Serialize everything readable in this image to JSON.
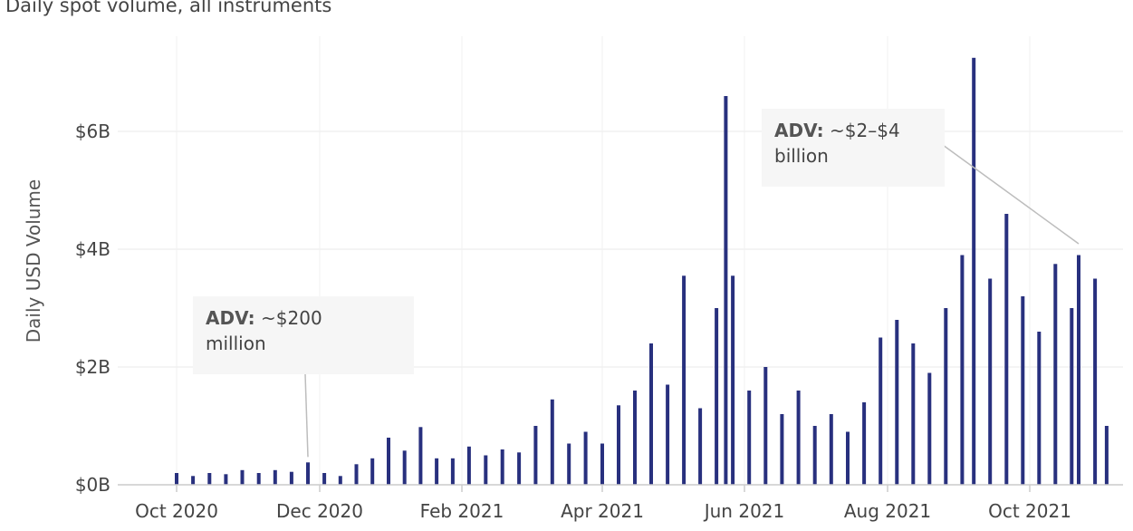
{
  "chart_data": {
    "type": "bar",
    "title": "Daily spot volume, all instruments",
    "xlabel": "",
    "ylabel": "Daily USD Volume",
    "unit": "USD billions",
    "ylim": [
      0,
      7.5
    ],
    "yticks": [
      {
        "value": 0,
        "label": "$0B"
      },
      {
        "value": 2,
        "label": "$2B"
      },
      {
        "value": 4,
        "label": "$4B"
      },
      {
        "value": 6,
        "label": "$6B"
      }
    ],
    "xticks": [
      {
        "date": "2020-10-01",
        "label": "Oct 2020"
      },
      {
        "date": "2020-12-01",
        "label": "Dec 2020"
      },
      {
        "date": "2021-02-01",
        "label": "Feb 2021"
      },
      {
        "date": "2021-04-01",
        "label": "Apr 2021"
      },
      {
        "date": "2021-06-01",
        "label": "Jun 2021"
      },
      {
        "date": "2021-08-01",
        "label": "Aug 2021"
      },
      {
        "date": "2021-10-01",
        "label": "Oct 2021"
      }
    ],
    "x_start": "2020-09-01",
    "x_end": "2021-11-30",
    "grid": "horizontal",
    "bar_color": "#28307e",
    "series": [
      {
        "values": [
          {
            "date": "2020-10-01",
            "value": 0.2
          },
          {
            "date": "2020-10-08",
            "value": 0.15
          },
          {
            "date": "2020-10-15",
            "value": 0.2
          },
          {
            "date": "2020-10-22",
            "value": 0.18
          },
          {
            "date": "2020-10-29",
            "value": 0.25
          },
          {
            "date": "2020-11-05",
            "value": 0.2
          },
          {
            "date": "2020-11-12",
            "value": 0.25
          },
          {
            "date": "2020-11-19",
            "value": 0.22
          },
          {
            "date": "2020-11-26",
            "value": 0.38
          },
          {
            "date": "2020-12-03",
            "value": 0.2
          },
          {
            "date": "2020-12-10",
            "value": 0.15
          },
          {
            "date": "2020-12-17",
            "value": 0.35
          },
          {
            "date": "2020-12-24",
            "value": 0.45
          },
          {
            "date": "2020-12-31",
            "value": 0.8
          },
          {
            "date": "2021-01-07",
            "value": 0.58
          },
          {
            "date": "2021-01-14",
            "value": 0.98
          },
          {
            "date": "2021-01-21",
            "value": 0.45
          },
          {
            "date": "2021-01-28",
            "value": 0.45
          },
          {
            "date": "2021-02-04",
            "value": 0.65
          },
          {
            "date": "2021-02-11",
            "value": 0.5
          },
          {
            "date": "2021-02-18",
            "value": 0.6
          },
          {
            "date": "2021-02-25",
            "value": 0.55
          },
          {
            "date": "2021-03-04",
            "value": 1.0
          },
          {
            "date": "2021-03-11",
            "value": 1.45
          },
          {
            "date": "2021-03-18",
            "value": 0.7
          },
          {
            "date": "2021-03-25",
            "value": 0.9
          },
          {
            "date": "2021-04-01",
            "value": 0.7
          },
          {
            "date": "2021-04-08",
            "value": 1.35
          },
          {
            "date": "2021-04-15",
            "value": 1.6
          },
          {
            "date": "2021-04-22",
            "value": 2.4
          },
          {
            "date": "2021-04-29",
            "value": 1.7
          },
          {
            "date": "2021-05-06",
            "value": 3.55
          },
          {
            "date": "2021-05-13",
            "value": 1.3
          },
          {
            "date": "2021-05-20",
            "value": 3.0
          },
          {
            "date": "2021-05-24",
            "value": 6.6
          },
          {
            "date": "2021-05-27",
            "value": 3.55
          },
          {
            "date": "2021-06-03",
            "value": 1.6
          },
          {
            "date": "2021-06-10",
            "value": 2.0
          },
          {
            "date": "2021-06-17",
            "value": 1.2
          },
          {
            "date": "2021-06-24",
            "value": 1.6
          },
          {
            "date": "2021-07-01",
            "value": 1.0
          },
          {
            "date": "2021-07-08",
            "value": 1.2
          },
          {
            "date": "2021-07-15",
            "value": 0.9
          },
          {
            "date": "2021-07-22",
            "value": 1.4
          },
          {
            "date": "2021-07-29",
            "value": 2.5
          },
          {
            "date": "2021-08-05",
            "value": 2.8
          },
          {
            "date": "2021-08-12",
            "value": 2.4
          },
          {
            "date": "2021-08-19",
            "value": 1.9
          },
          {
            "date": "2021-08-26",
            "value": 3.0
          },
          {
            "date": "2021-09-02",
            "value": 3.9
          },
          {
            "date": "2021-09-07",
            "value": 7.25
          },
          {
            "date": "2021-09-14",
            "value": 3.5
          },
          {
            "date": "2021-09-21",
            "value": 4.6
          },
          {
            "date": "2021-09-28",
            "value": 3.2
          },
          {
            "date": "2021-10-05",
            "value": 2.6
          },
          {
            "date": "2021-10-12",
            "value": 3.75
          },
          {
            "date": "2021-10-19",
            "value": 3.0
          },
          {
            "date": "2021-10-22",
            "value": 3.9
          },
          {
            "date": "2021-10-29",
            "value": 3.5
          },
          {
            "date": "2021-11-03",
            "value": 1.0
          }
        ]
      }
    ],
    "annotations": [
      {
        "bold": "ADV:",
        "text": "~$200",
        "text2": "million",
        "date": "2020-11-26",
        "value": 0.38
      },
      {
        "bold": "ADV:",
        "text": "~$2–$4",
        "text2": "billion",
        "date": "2021-10-22",
        "value": 4.0
      }
    ]
  }
}
